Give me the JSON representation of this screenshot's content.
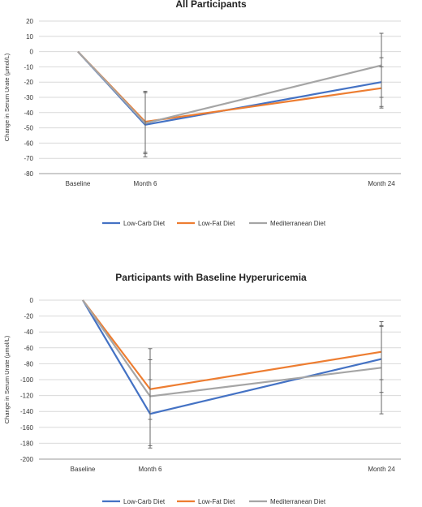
{
  "colors": {
    "low_carb": "#4472C4",
    "low_fat": "#ED7D31",
    "mediterranean": "#A5A5A5",
    "grid": "#D9D9D9"
  },
  "chart_data": [
    {
      "type": "line",
      "title": "All Participants",
      "ylabel": "Change in Serum Urate (μmol/L)",
      "xlabel": "",
      "categories": [
        "Baseline",
        "Month 6",
        "Month 24"
      ],
      "x": [
        0,
        6,
        24
      ],
      "ylim": [
        -80,
        20
      ],
      "yticks": [
        20,
        10,
        0,
        -10,
        -20,
        -30,
        -40,
        -50,
        -60,
        -70,
        -80
      ],
      "grid": true,
      "legend": "bottom",
      "series": [
        {
          "name": "Low-Carb Diet",
          "color_key": "low_carb",
          "values": [
            0,
            -48,
            -20
          ],
          "error_low": [
            null,
            -69,
            -36
          ],
          "error_high": [
            null,
            -27,
            -4
          ]
        },
        {
          "name": "Low-Fat Diet",
          "color_key": "low_fat",
          "values": [
            0,
            -46,
            -24
          ],
          "error_low": [
            null,
            -66,
            -37
          ],
          "error_high": [
            null,
            -26,
            -10
          ]
        },
        {
          "name": "Mediterranean Diet",
          "color_key": "mediterranean",
          "values": [
            0,
            -47,
            -9
          ],
          "error_low": [
            null,
            -67,
            -30
          ],
          "error_high": [
            null,
            -27,
            12
          ]
        }
      ]
    },
    {
      "type": "line",
      "title": "Participants with Baseline Hyperuricemia",
      "ylabel": "Change in Serum Urate (μmol/L)",
      "xlabel": "",
      "categories": [
        "Baseline",
        "Month 6",
        "Month 24"
      ],
      "x": [
        0,
        6,
        24
      ],
      "ylim": [
        -200,
        0
      ],
      "yticks": [
        0,
        -20,
        -40,
        -60,
        -80,
        -100,
        -120,
        -140,
        -160,
        -180,
        -200
      ],
      "grid": true,
      "legend": "bottom",
      "series": [
        {
          "name": "Low-Carb Diet",
          "color_key": "low_carb",
          "values": [
            0,
            -143,
            -74
          ],
          "error_low": [
            null,
            -186,
            -116
          ],
          "error_high": [
            null,
            -100,
            -32
          ]
        },
        {
          "name": "Low-Fat Diet",
          "color_key": "low_fat",
          "values": [
            0,
            -112,
            -65
          ],
          "error_low": [
            null,
            -150,
            -100
          ],
          "error_high": [
            null,
            -61,
            -27
          ]
        },
        {
          "name": "Mediterranean Diet",
          "color_key": "mediterranean",
          "values": [
            0,
            -121,
            -85
          ],
          "error_low": [
            null,
            -183,
            -143
          ],
          "error_high": [
            null,
            -75,
            -33
          ]
        }
      ]
    }
  ]
}
